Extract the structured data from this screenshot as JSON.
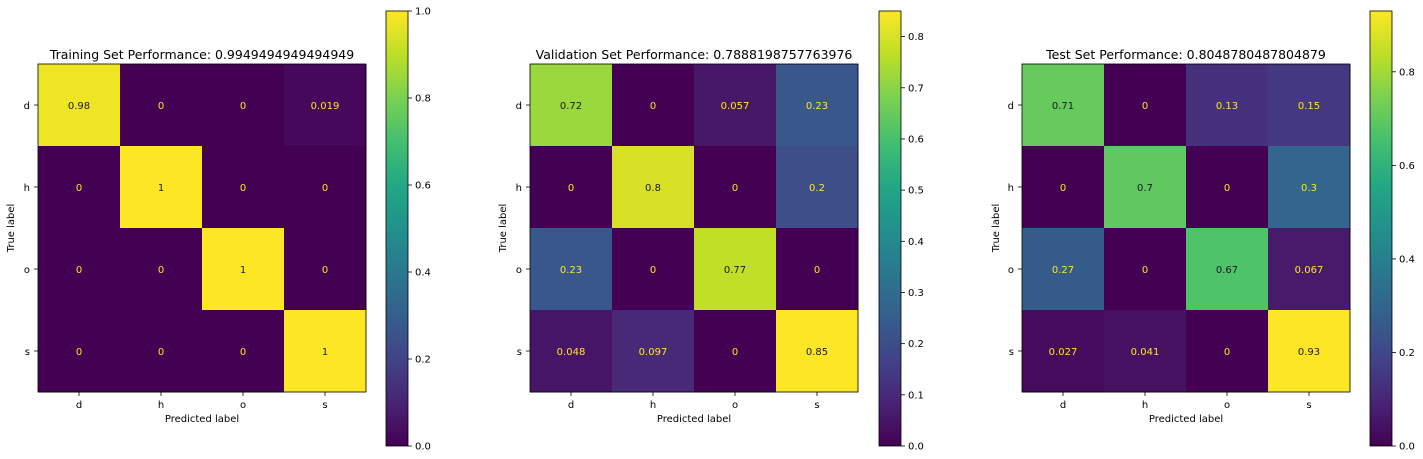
{
  "chart_data": [
    {
      "type": "heatmap",
      "title": "Training Set Performance: 0.9949494949494949",
      "xlabel": "Predicted label",
      "ylabel": "True label",
      "x_categories": [
        "d",
        "h",
        "o",
        "s"
      ],
      "y_categories": [
        "d",
        "h",
        "o",
        "s"
      ],
      "values": [
        [
          0.98,
          0,
          0,
          0.019
        ],
        [
          0,
          1,
          0,
          0
        ],
        [
          0,
          0,
          1,
          0
        ],
        [
          0,
          0,
          0,
          1
        ]
      ],
      "value_labels": [
        [
          "0.98",
          "0",
          "0",
          "0.019"
        ],
        [
          "0",
          "1",
          "0",
          "0"
        ],
        [
          "0",
          "0",
          "1",
          "0"
        ],
        [
          "0",
          "0",
          "0",
          "1"
        ]
      ],
      "colorbar": {
        "vmin": 0,
        "vmax": 1.0,
        "ticks": [
          0,
          0.2,
          0.4,
          0.6,
          0.8,
          1.0
        ],
        "tick_labels": [
          "0.0",
          "0.2",
          "0.4",
          "0.6",
          "0.8",
          "1.0"
        ]
      },
      "colormap": "viridis"
    },
    {
      "type": "heatmap",
      "title": "Validation Set Performance: 0.7888198757763976",
      "xlabel": "Predicted label",
      "ylabel": "True label",
      "x_categories": [
        "d",
        "h",
        "o",
        "s"
      ],
      "y_categories": [
        "d",
        "h",
        "o",
        "s"
      ],
      "values": [
        [
          0.72,
          0,
          0.057,
          0.23
        ],
        [
          0,
          0.8,
          0,
          0.2
        ],
        [
          0.23,
          0,
          0.77,
          0
        ],
        [
          0.048,
          0.097,
          0,
          0.85
        ]
      ],
      "value_labels": [
        [
          "0.72",
          "0",
          "0.057",
          "0.23"
        ],
        [
          "0",
          "0.8",
          "0",
          "0.2"
        ],
        [
          "0.23",
          "0",
          "0.77",
          "0"
        ],
        [
          "0.048",
          "0.097",
          "0",
          "0.85"
        ]
      ],
      "colorbar": {
        "vmin": 0,
        "vmax": 0.85,
        "ticks": [
          0,
          0.1,
          0.2,
          0.3,
          0.4,
          0.5,
          0.6,
          0.7,
          0.8
        ],
        "tick_labels": [
          "0.0",
          "0.1",
          "0.2",
          "0.3",
          "0.4",
          "0.5",
          "0.6",
          "0.7",
          "0.8"
        ]
      },
      "colormap": "viridis"
    },
    {
      "type": "heatmap",
      "title": "Test Set Performance: 0.8048780487804879",
      "xlabel": "Predicted label",
      "ylabel": "True label",
      "x_categories": [
        "d",
        "h",
        "o",
        "s"
      ],
      "y_categories": [
        "d",
        "h",
        "o",
        "s"
      ],
      "values": [
        [
          0.71,
          0,
          0.13,
          0.15
        ],
        [
          0,
          0.7,
          0,
          0.3
        ],
        [
          0.27,
          0,
          0.67,
          0.067
        ],
        [
          0.027,
          0.041,
          0,
          0.93
        ]
      ],
      "value_labels": [
        [
          "0.71",
          "0",
          "0.13",
          "0.15"
        ],
        [
          "0",
          "0.7",
          "0",
          "0.3"
        ],
        [
          "0.27",
          "0",
          "0.67",
          "0.067"
        ],
        [
          "0.027",
          "0.041",
          "0",
          "0.93"
        ]
      ],
      "colorbar": {
        "vmin": 0,
        "vmax": 0.93,
        "ticks": [
          0,
          0.2,
          0.4,
          0.6,
          0.8
        ],
        "tick_labels": [
          "0.0",
          "0.2",
          "0.4",
          "0.6",
          "0.8"
        ]
      },
      "colormap": "viridis"
    }
  ]
}
